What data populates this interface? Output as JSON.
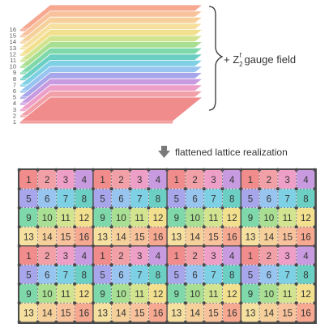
{
  "stack": {
    "layer_labels": [
      "1",
      "2",
      "3",
      "4",
      "5",
      "6",
      "7",
      "8",
      "9",
      "10",
      "11",
      "12",
      "13",
      "14",
      "15",
      "16"
    ],
    "layer_colors": [
      "#f08c8c",
      "#f2a0a8",
      "#ee9fc8",
      "#c89be0",
      "#a8a6ea",
      "#98c4f0",
      "#7ed0e4",
      "#6ccfc4",
      "#7ed8aa",
      "#a8df92",
      "#d2e490",
      "#f2e08e",
      "#f6e0a0",
      "#f6d09a",
      "#f8c39c",
      "#f6a890"
    ]
  },
  "brace_label": "+ Z",
  "brace_sub": "2",
  "brace_sup": "f",
  "brace_suffix": " gauge field",
  "arrow_label": "flattened lattice realization",
  "lattice": {
    "cell_labels": [
      [
        "1",
        "2",
        "3",
        "4"
      ],
      [
        "5",
        "6",
        "7",
        "8"
      ],
      [
        "9",
        "10",
        "11",
        "12"
      ],
      [
        "13",
        "14",
        "15",
        "16"
      ]
    ],
    "tile_rows": 2,
    "tile_cols": 4,
    "background": "#5c5c5c",
    "dot_color": "#4a4a4a"
  }
}
